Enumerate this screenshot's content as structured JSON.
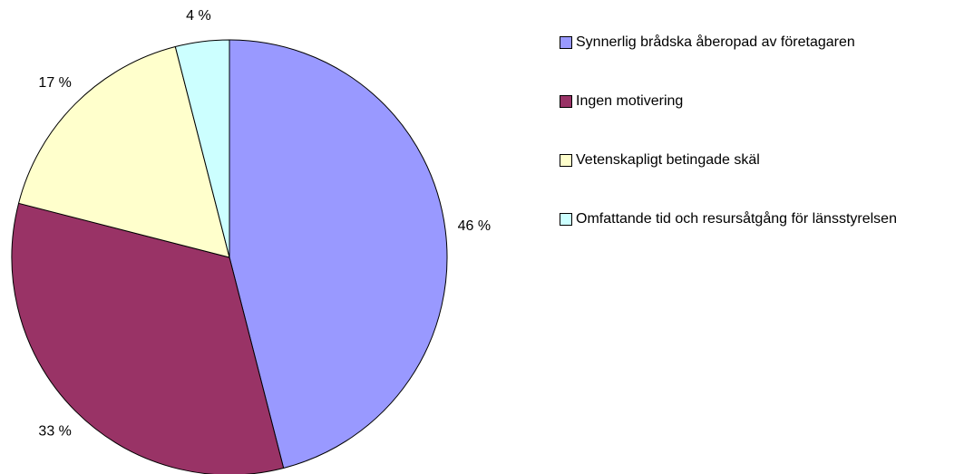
{
  "chart_data": {
    "type": "pie",
    "categories": [
      "Synnerlig brådska åberopad av företagaren",
      "Ingen motivering",
      "Vetenskapligt betingade skäl",
      "Omfattande tid och resursåtgång för länsstyrelsen"
    ],
    "values": [
      46,
      33,
      17,
      4
    ],
    "value_labels": [
      "46 %",
      "33 %",
      "17 %",
      "4 %"
    ],
    "colors": [
      "#9999ff",
      "#993366",
      "#ffffcc",
      "#ccffff"
    ],
    "legend": "right"
  }
}
